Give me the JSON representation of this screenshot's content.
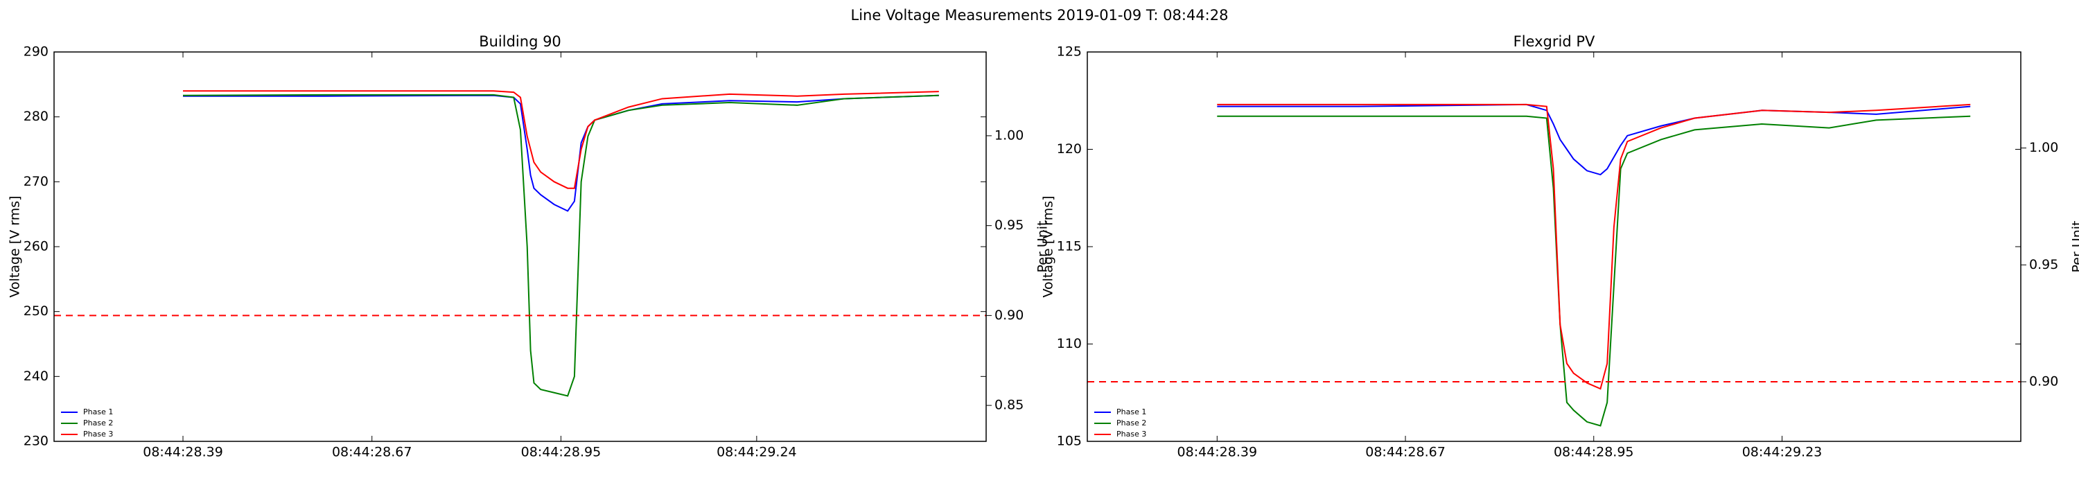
{
  "title": "Line Voltage Measurements 2019-01-09 T: 08:44:28",
  "chart_data": [
    {
      "type": "line",
      "title": "Building 90",
      "ylabel": "Voltage [V rms]",
      "y2label": "Per Unit",
      "x": [
        28.39,
        28.6,
        28.85,
        28.88,
        28.89,
        28.9,
        28.905,
        28.91,
        28.92,
        28.94,
        28.96,
        28.97,
        28.98,
        28.99,
        29.0,
        29.05,
        29.1,
        29.2,
        29.3,
        29.37,
        29.51
      ],
      "series": [
        {
          "name": "Phase 1",
          "color": "#0000ff",
          "values": [
            283.2,
            283.2,
            283.3,
            283,
            282,
            275,
            271,
            269,
            268,
            266.5,
            265.5,
            267,
            276,
            278.5,
            279.5,
            281,
            282,
            282.5,
            282.3,
            282.8,
            283.3
          ]
        },
        {
          "name": "Phase 2",
          "color": "#008000",
          "values": [
            283.3,
            283.4,
            283.4,
            283,
            278,
            260,
            244,
            239,
            238,
            237.5,
            237,
            240,
            270,
            277,
            279.5,
            281,
            281.8,
            282.2,
            281.8,
            282.8,
            283.3
          ]
        },
        {
          "name": "Phase 3",
          "color": "#ff0000",
          "values": [
            284,
            284,
            284,
            283.8,
            283,
            277,
            275,
            273,
            271.5,
            270,
            269,
            269,
            275,
            278.5,
            279.5,
            281.5,
            282.8,
            283.5,
            283.2,
            283.5,
            283.9
          ]
        }
      ],
      "xlim": [
        28.199,
        29.58
      ],
      "xticks": [
        {
          "value": 28.39,
          "label": "08:44:28.39"
        },
        {
          "value": 28.67,
          "label": "08:44:28.67"
        },
        {
          "value": 28.95,
          "label": "08:44:28.95"
        },
        {
          "value": 29.24,
          "label": "08:44:29.24"
        }
      ],
      "ylim": [
        230,
        290
      ],
      "yticks": [
        230,
        240,
        250,
        260,
        270,
        280,
        290
      ],
      "y2lim": [
        0.83,
        1.0466
      ],
      "y2ticks": [
        0.85,
        {
          "value": 0.9,
          "label": "0.90"
        },
        0.95,
        {
          "value": 1,
          "label": "1.00"
        }
      ],
      "hline": {
        "value": 0.9,
        "axis": "y2",
        "color": "#ff0000"
      },
      "legend": "lower left"
    },
    {
      "type": "line",
      "title": "Flexgrid PV",
      "ylabel": "Voltage [V rms]",
      "y2label": "Per Unit",
      "x": [
        28.39,
        28.6,
        28.85,
        28.88,
        28.89,
        28.9,
        28.91,
        28.92,
        28.94,
        28.96,
        28.97,
        28.98,
        28.99,
        29.0,
        29.05,
        29.1,
        29.2,
        29.3,
        29.37,
        29.51
      ],
      "series": [
        {
          "name": "Phase 1",
          "color": "#0000ff",
          "values": [
            122.2,
            122.2,
            122.3,
            122,
            121.3,
            120.5,
            120,
            119.5,
            118.9,
            118.7,
            119,
            119.6,
            120.2,
            120.7,
            121.2,
            121.6,
            122,
            121.9,
            121.8,
            122.2
          ]
        },
        {
          "name": "Phase 2",
          "color": "#008000",
          "values": [
            121.7,
            121.7,
            121.7,
            121.6,
            118,
            111,
            107,
            106.6,
            106,
            105.8,
            107,
            113,
            119,
            119.8,
            120.5,
            121,
            121.3,
            121.1,
            121.5,
            121.7
          ]
        },
        {
          "name": "Phase 3",
          "color": "#ff0000",
          "values": [
            122.3,
            122.3,
            122.3,
            122.2,
            119,
            111,
            109,
            108.5,
            108,
            107.7,
            109,
            116,
            119.5,
            120.4,
            121.1,
            121.6,
            122,
            121.9,
            122,
            122.3
          ]
        }
      ],
      "xlim": [
        28.197,
        29.585
      ],
      "xticks": [
        {
          "value": 28.39,
          "label": "08:44:28.39"
        },
        {
          "value": 28.67,
          "label": "08:44:28.67"
        },
        {
          "value": 28.95,
          "label": "08:44:28.95"
        },
        {
          "value": 29.23,
          "label": "08:44:29.23"
        }
      ],
      "ylim": [
        105,
        125
      ],
      "yticks": [
        105,
        110,
        115,
        120,
        125
      ],
      "y2lim": [
        0.8745,
        1.0411
      ],
      "y2ticks": [
        {
          "value": 0.9,
          "label": "0.90"
        },
        0.95,
        {
          "value": 1,
          "label": "1.00"
        }
      ],
      "hline": {
        "value": 0.9,
        "axis": "y2",
        "color": "#ff0000"
      },
      "legend": "lower left"
    }
  ]
}
